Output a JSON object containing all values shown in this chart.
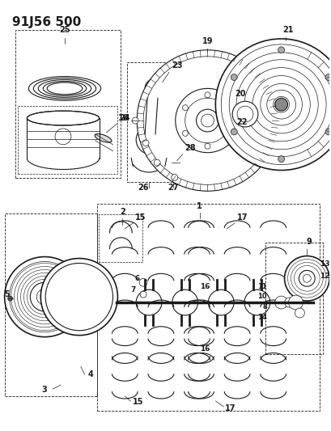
{
  "title": "91J56 500",
  "bg_color": "#ffffff",
  "line_color": "#1a1a1a",
  "fig_w": 4.1,
  "fig_h": 5.33,
  "dpi": 100
}
